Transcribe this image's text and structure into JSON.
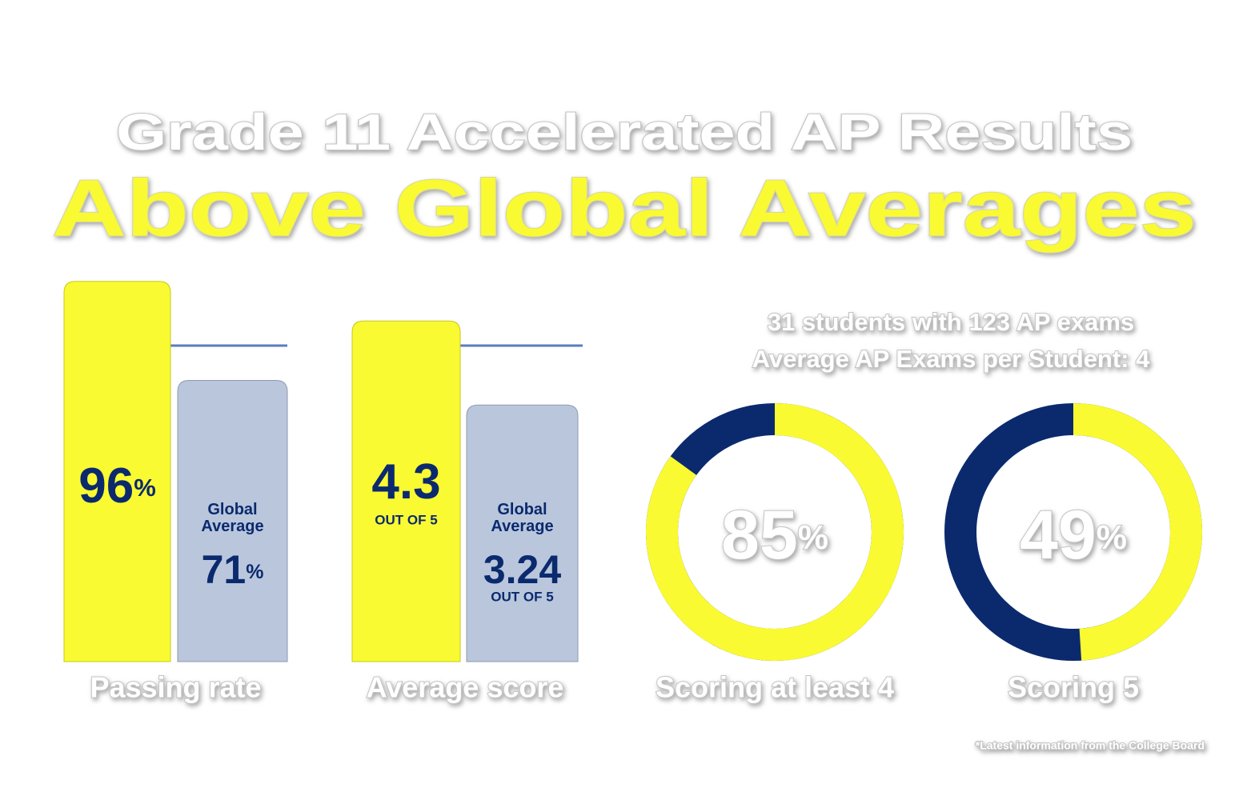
{
  "header": {
    "title": "Grade 11 Accelerated AP Results",
    "subtitle": "Above Global Averages"
  },
  "notes": [
    "31 students with 123 AP exams",
    "Average AP Exams per Student: 4"
  ],
  "footnote": "*Latest information from the College Board",
  "chart_data": [
    {
      "type": "bar",
      "xlabel": "Passing rate",
      "unit": "%",
      "categories": [
        null,
        "Global Average"
      ],
      "values": [
        96,
        71
      ],
      "colors": [
        "#fafa32",
        "#b9c6dc"
      ],
      "ylim": [
        0,
        100
      ]
    },
    {
      "type": "bar",
      "xlabel": "Average score",
      "note": "OUT OF 5",
      "categories": [
        null,
        "Global Average"
      ],
      "values": [
        4.3,
        3.24
      ],
      "colors": [
        "#fafa32",
        "#b9c6dc"
      ],
      "ylim": [
        0,
        5
      ]
    },
    {
      "type": "donut",
      "xlabel": "Scoring at least 4",
      "unit": "%",
      "value": 85,
      "ylim": [
        0,
        100
      ],
      "color": "#fafa32",
      "rest_color": "#0b2a6e"
    },
    {
      "type": "donut",
      "xlabel": "Scoring 5",
      "unit": "%",
      "value": 49,
      "ylim": [
        0,
        100
      ],
      "color": "#fafa32",
      "rest_color": "#0b2a6e"
    }
  ]
}
